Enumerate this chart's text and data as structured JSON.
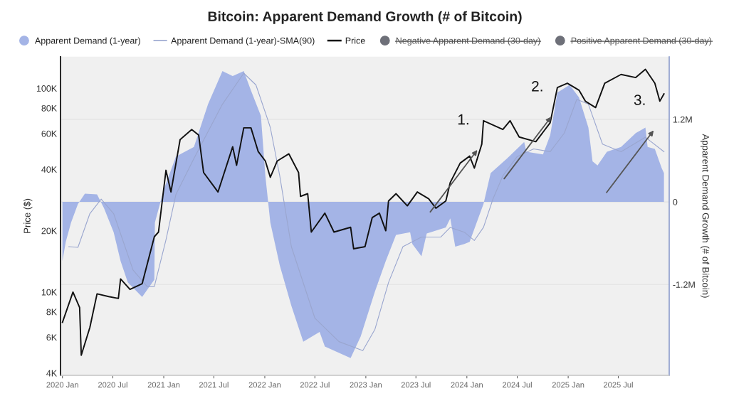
{
  "chart_data": {
    "type": "line",
    "title": "Bitcoin: Apparent Demand Growth (# of Bitcoin)",
    "ylabel": "Price ($)",
    "y2label": "Apparent Demand Growth (# of Bitcoin)",
    "xlim": [
      "2019-12-25",
      "2026-01-01"
    ],
    "xticks": [
      {
        "value": "2020-01-01",
        "label": "2020 Jan"
      },
      {
        "value": "2020-07-01",
        "label": "2020 Jul"
      },
      {
        "value": "2021-01-01",
        "label": "2021 Jan"
      },
      {
        "value": "2021-07-01",
        "label": "2021 Jul"
      },
      {
        "value": "2022-01-01",
        "label": "2022 Jan"
      },
      {
        "value": "2022-07-01",
        "label": "2022 Jul"
      },
      {
        "value": "2023-01-01",
        "label": "2023 Jan"
      },
      {
        "value": "2023-07-01",
        "label": "2023 Jul"
      },
      {
        "value": "2024-01-01",
        "label": "2024 Jan"
      },
      {
        "value": "2024-07-01",
        "label": "2024 Jul"
      },
      {
        "value": "2025-01-01",
        "label": "2025 Jan"
      },
      {
        "value": "2025-07-01",
        "label": "2025 Jul"
      }
    ],
    "log": "y",
    "ylim": [
      3900,
      143000
    ],
    "yticks": [
      {
        "value": 4000,
        "label": "4K"
      },
      {
        "value": 6000,
        "label": "6K"
      },
      {
        "value": 8000,
        "label": "8K"
      },
      {
        "value": 10000,
        "label": "10K"
      },
      {
        "value": 20000,
        "label": "20K"
      },
      {
        "value": 40000,
        "label": "40K"
      },
      {
        "value": 60000,
        "label": "60K"
      },
      {
        "value": 80000,
        "label": "80K"
      },
      {
        "value": 100000,
        "label": "100K"
      }
    ],
    "y2lim": [
      -2520000,
      2110000
    ],
    "y2ticks": [
      {
        "value": -1200000,
        "label": "-1.2M"
      },
      {
        "value": 0,
        "label": "0"
      },
      {
        "value": 1200000,
        "label": "1.2M"
      }
    ],
    "grid": "y",
    "legend": "top",
    "annotations": [
      {
        "text": "1.",
        "x": "2024-03-01",
        "y": 69400
      },
      {
        "text": "2.",
        "x": "2024-11-23",
        "y": 101000
      },
      {
        "text": "3.",
        "x": "2025-11-28",
        "y": 86500
      }
    ],
    "series": [
      {
        "name": "Apparent Demand (1-year)",
        "type": "area",
        "axis": "y2",
        "color": "#a4b4e6",
        "x": [
          "2020-01-01",
          "2020-01-13",
          "2020-02-01",
          "2020-02-26",
          "2020-03-22",
          "2020-05-05",
          "2020-05-30",
          "2020-07-04",
          "2020-07-29",
          "2020-08-24",
          "2020-10-15",
          "2020-11-28",
          "2020-11-30",
          "2021-01-01",
          "2021-02-14",
          "2021-04-20",
          "2021-06-10",
          "2021-08-01",
          "2021-09-07",
          "2021-10-17",
          "2021-11-12",
          "2021-12-18",
          "2022-01-03",
          "2022-01-21",
          "2022-02-24",
          "2022-04-07",
          "2022-05-20",
          "2022-07-18",
          "2022-08-06",
          "2022-11-07",
          "2022-12-13",
          "2023-02-03",
          "2023-03-14",
          "2023-04-20",
          "2023-06-10",
          "2023-06-18",
          "2023-07-21",
          "2023-08-09",
          "2023-10-17",
          "2023-11-02",
          "2023-11-20",
          "2023-12-23",
          "2024-01-11",
          "2024-03-01",
          "2024-03-27",
          "2024-05-25",
          "2024-07-26",
          "2024-08-03",
          "2024-10-02",
          "2024-10-28",
          "2024-11-23",
          "2025-01-06",
          "2025-02-09",
          "2025-03-15",
          "2025-03-30",
          "2025-04-17",
          "2025-05-21",
          "2025-07-11",
          "2025-09-02",
          "2025-10-07",
          "2025-10-15",
          "2025-11-10",
          "2025-12-05",
          "2025-12-13"
        ],
        "values": [
          -860000,
          -580000,
          -300000,
          -30000,
          120000,
          110000,
          -90000,
          -440000,
          -860000,
          -1170000,
          -1380000,
          -1130000,
          -300000,
          180000,
          660000,
          800000,
          1420000,
          1900000,
          1830000,
          1900000,
          1620000,
          1250000,
          380000,
          -300000,
          -920000,
          -1510000,
          -2030000,
          -1890000,
          -2100000,
          -2270000,
          -1960000,
          -1300000,
          -860000,
          -480000,
          -440000,
          -610000,
          -790000,
          -460000,
          -370000,
          -240000,
          -650000,
          -610000,
          -580000,
          -30000,
          420000,
          630000,
          870000,
          730000,
          690000,
          970000,
          1590000,
          1700000,
          1520000,
          1080000,
          590000,
          530000,
          730000,
          800000,
          1000000,
          1080000,
          800000,
          770000,
          490000,
          420000
        ]
      },
      {
        "name": "Apparent Demand (1-year)-SMA(90)",
        "type": "line",
        "axis": "y2",
        "color": "#9aa6cf",
        "x": [
          "2020-01-24",
          "2020-02-26",
          "2020-04-09",
          "2020-05-20",
          "2020-07-04",
          "2020-09-12",
          "2020-11-02",
          "2020-11-28",
          "2021-01-09",
          "2021-02-14",
          "2021-04-20",
          "2021-08-01",
          "2021-10-17",
          "2021-11-30",
          "2022-01-13",
          "2022-01-21",
          "2022-02-24",
          "2022-04-07",
          "2022-07-01",
          "2022-09-26",
          "2022-12-21",
          "2023-02-03",
          "2023-03-24",
          "2023-05-15",
          "2023-07-21",
          "2023-09-29",
          "2023-11-02",
          "2023-12-23",
          "2024-01-28",
          "2024-03-01",
          "2024-04-04",
          "2024-05-10",
          "2024-07-01",
          "2024-08-29",
          "2024-10-28",
          "2024-12-18",
          "2025-02-01",
          "2025-03-15",
          "2025-05-05",
          "2025-07-11",
          "2025-10-07",
          "2025-12-13"
        ],
        "values": [
          -650000,
          -660000,
          -170000,
          40000,
          -170000,
          -990000,
          -1230000,
          -1230000,
          -550000,
          110000,
          630000,
          1420000,
          1870000,
          1700000,
          1180000,
          1080000,
          380000,
          -650000,
          -1690000,
          -2030000,
          -2160000,
          -1850000,
          -1170000,
          -650000,
          -510000,
          -510000,
          -370000,
          -440000,
          -560000,
          -370000,
          40000,
          380000,
          660000,
          770000,
          730000,
          1000000,
          1490000,
          1420000,
          840000,
          730000,
          940000,
          730000
        ]
      },
      {
        "name": "Price",
        "color": "#111111",
        "x": [
          "2020-01-01",
          "2020-02-08",
          "2020-03-03",
          "2020-03-09",
          "2020-04-09",
          "2020-05-05",
          "2020-06-16",
          "2020-07-21",
          "2020-07-29",
          "2020-09-01",
          "2020-10-15",
          "2020-11-28",
          "2020-12-13",
          "2021-01-09",
          "2021-01-27",
          "2021-03-01",
          "2021-04-12",
          "2021-05-07",
          "2021-05-25",
          "2021-07-16",
          "2021-09-07",
          "2021-09-21",
          "2021-10-17",
          "2021-11-12",
          "2021-12-08",
          "2022-01-03",
          "2022-01-21",
          "2022-02-15",
          "2022-03-29",
          "2022-05-03",
          "2022-05-10",
          "2022-06-05",
          "2022-06-18",
          "2022-08-06",
          "2022-09-08",
          "2022-11-07",
          "2022-11-18",
          "2022-12-29",
          "2023-01-24",
          "2023-02-19",
          "2023-03-14",
          "2023-03-24",
          "2023-04-20",
          "2023-05-31",
          "2023-07-06",
          "2023-08-16",
          "2023-09-11",
          "2023-10-17",
          "2023-11-02",
          "2023-12-08",
          "2024-01-11",
          "2024-01-28",
          "2024-02-24",
          "2024-03-01",
          "2024-05-10",
          "2024-06-05",
          "2024-07-08",
          "2024-09-06",
          "2024-10-28",
          "2024-11-23",
          "2024-12-29",
          "2025-02-09",
          "2025-03-04",
          "2025-04-10",
          "2025-05-13",
          "2025-07-11",
          "2025-09-02",
          "2025-10-07",
          "2025-11-10",
          "2025-11-28",
          "2025-12-13"
        ],
        "values": [
          7100,
          10000,
          8400,
          4900,
          6700,
          9800,
          9500,
          9300,
          11600,
          10300,
          11000,
          18700,
          19700,
          39600,
          31000,
          56000,
          62800,
          59000,
          38600,
          31000,
          51700,
          41900,
          64000,
          64000,
          49000,
          44000,
          36600,
          44000,
          47700,
          38600,
          29500,
          30400,
          19700,
          24400,
          19700,
          20800,
          16300,
          16700,
          23200,
          24400,
          20000,
          28000,
          30400,
          26500,
          31000,
          28700,
          25800,
          28000,
          34500,
          43000,
          46500,
          40600,
          53300,
          69400,
          62800,
          69400,
          57700,
          54700,
          67800,
          101000,
          106000,
          98000,
          86500,
          80500,
          106000,
          117000,
          113000,
          124000,
          106000,
          86500,
          94000
        ]
      },
      {
        "name": "Negative Apparent Demand (30-day)",
        "type": "scatter",
        "color": "#6e7079"
      },
      {
        "name": "Positive Apparent Demand (30-day)",
        "type": "scatter",
        "color": "#6e7079"
      }
    ]
  }
}
